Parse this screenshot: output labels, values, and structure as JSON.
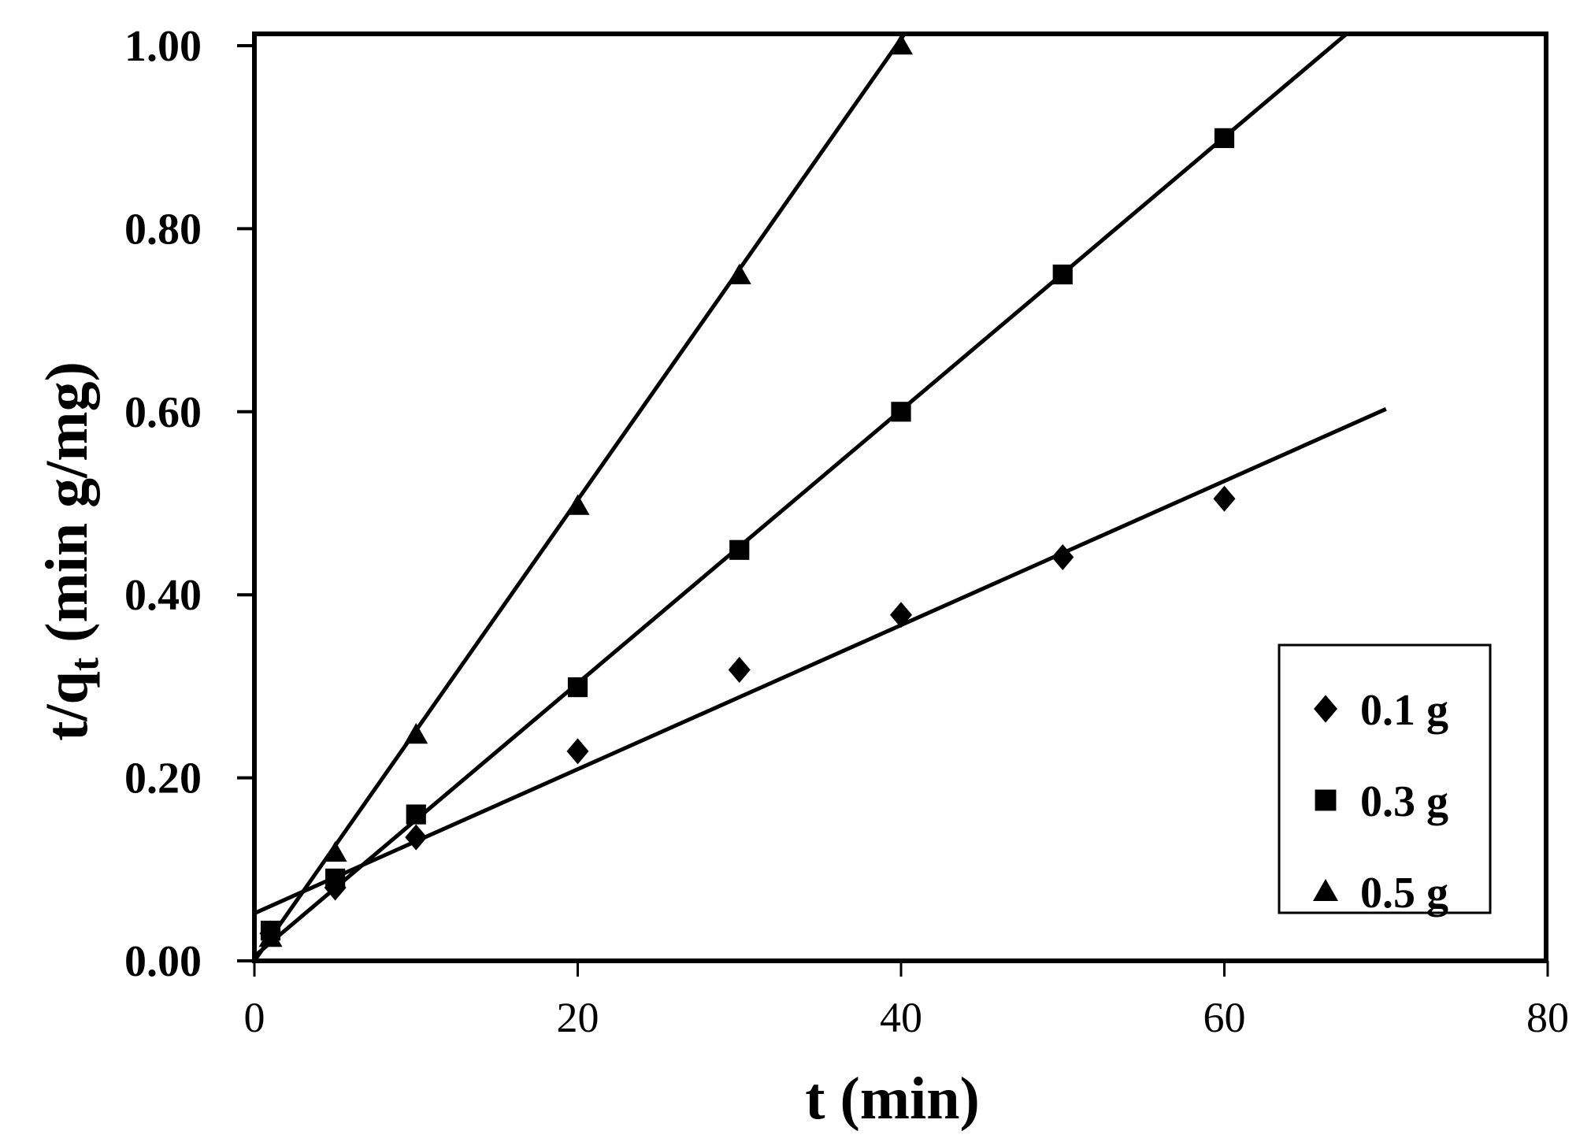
{
  "chart_data": {
    "type": "scatter",
    "title": "",
    "xlabel": "t (min)",
    "ylabel": "t/q_t (min g/mg)",
    "ylabel_parts": {
      "main": "t/q",
      "subscript": "t",
      "rest": " (min g/mg)"
    },
    "xlim": [
      0,
      80
    ],
    "ylim": [
      0,
      1.0
    ],
    "xticks": [
      0,
      20,
      40,
      60,
      80
    ],
    "xtick_labels": [
      "0",
      "20",
      "40",
      "60",
      "80"
    ],
    "yticks": [
      0,
      0.2,
      0.4,
      0.6,
      0.8,
      1.0
    ],
    "ytick_labels": [
      "0.00",
      "0.20",
      "0.40",
      "0.60",
      "0.80",
      "1.00"
    ],
    "grid": false,
    "legend_position": "lower right",
    "series": [
      {
        "name": "0.1 g",
        "marker": "diamond",
        "color": "#000000",
        "x": [
          1,
          5,
          10,
          20,
          30,
          40,
          50,
          60
        ],
        "y": [
          0.03,
          0.08,
          0.135,
          0.229,
          0.318,
          0.378,
          0.441,
          0.505
        ],
        "fit_line": {
          "x": [
            0,
            70
          ],
          "y": [
            0.052,
            0.603
          ]
        }
      },
      {
        "name": "0.3 g",
        "marker": "square",
        "color": "#000000",
        "x": [
          1,
          5,
          10,
          20,
          30,
          40,
          50,
          60
        ],
        "y": [
          0.033,
          0.09,
          0.16,
          0.299,
          0.449,
          0.6,
          0.75,
          0.899
        ],
        "fit_line": {
          "x": [
            0,
            67.7
          ],
          "y": [
            0.005,
            1.015
          ]
        }
      },
      {
        "name": "0.5 g",
        "marker": "triangle",
        "color": "#000000",
        "x": [
          1,
          5,
          10,
          20,
          30,
          40
        ],
        "y": [
          0.025,
          0.118,
          0.247,
          0.497,
          0.749,
          1.0
        ],
        "fit_line": {
          "x": [
            0,
            40.3
          ],
          "y": [
            0.0,
            1.015
          ]
        }
      }
    ]
  },
  "legend": {
    "items": [
      {
        "label": "0.1 g",
        "marker": "diamond"
      },
      {
        "label": "0.3 g",
        "marker": "square"
      },
      {
        "label": "0.5 g",
        "marker": "triangle"
      }
    ]
  },
  "style": {
    "axis_color": "#000000",
    "background": "#ffffff",
    "marker_color": "#000000"
  }
}
